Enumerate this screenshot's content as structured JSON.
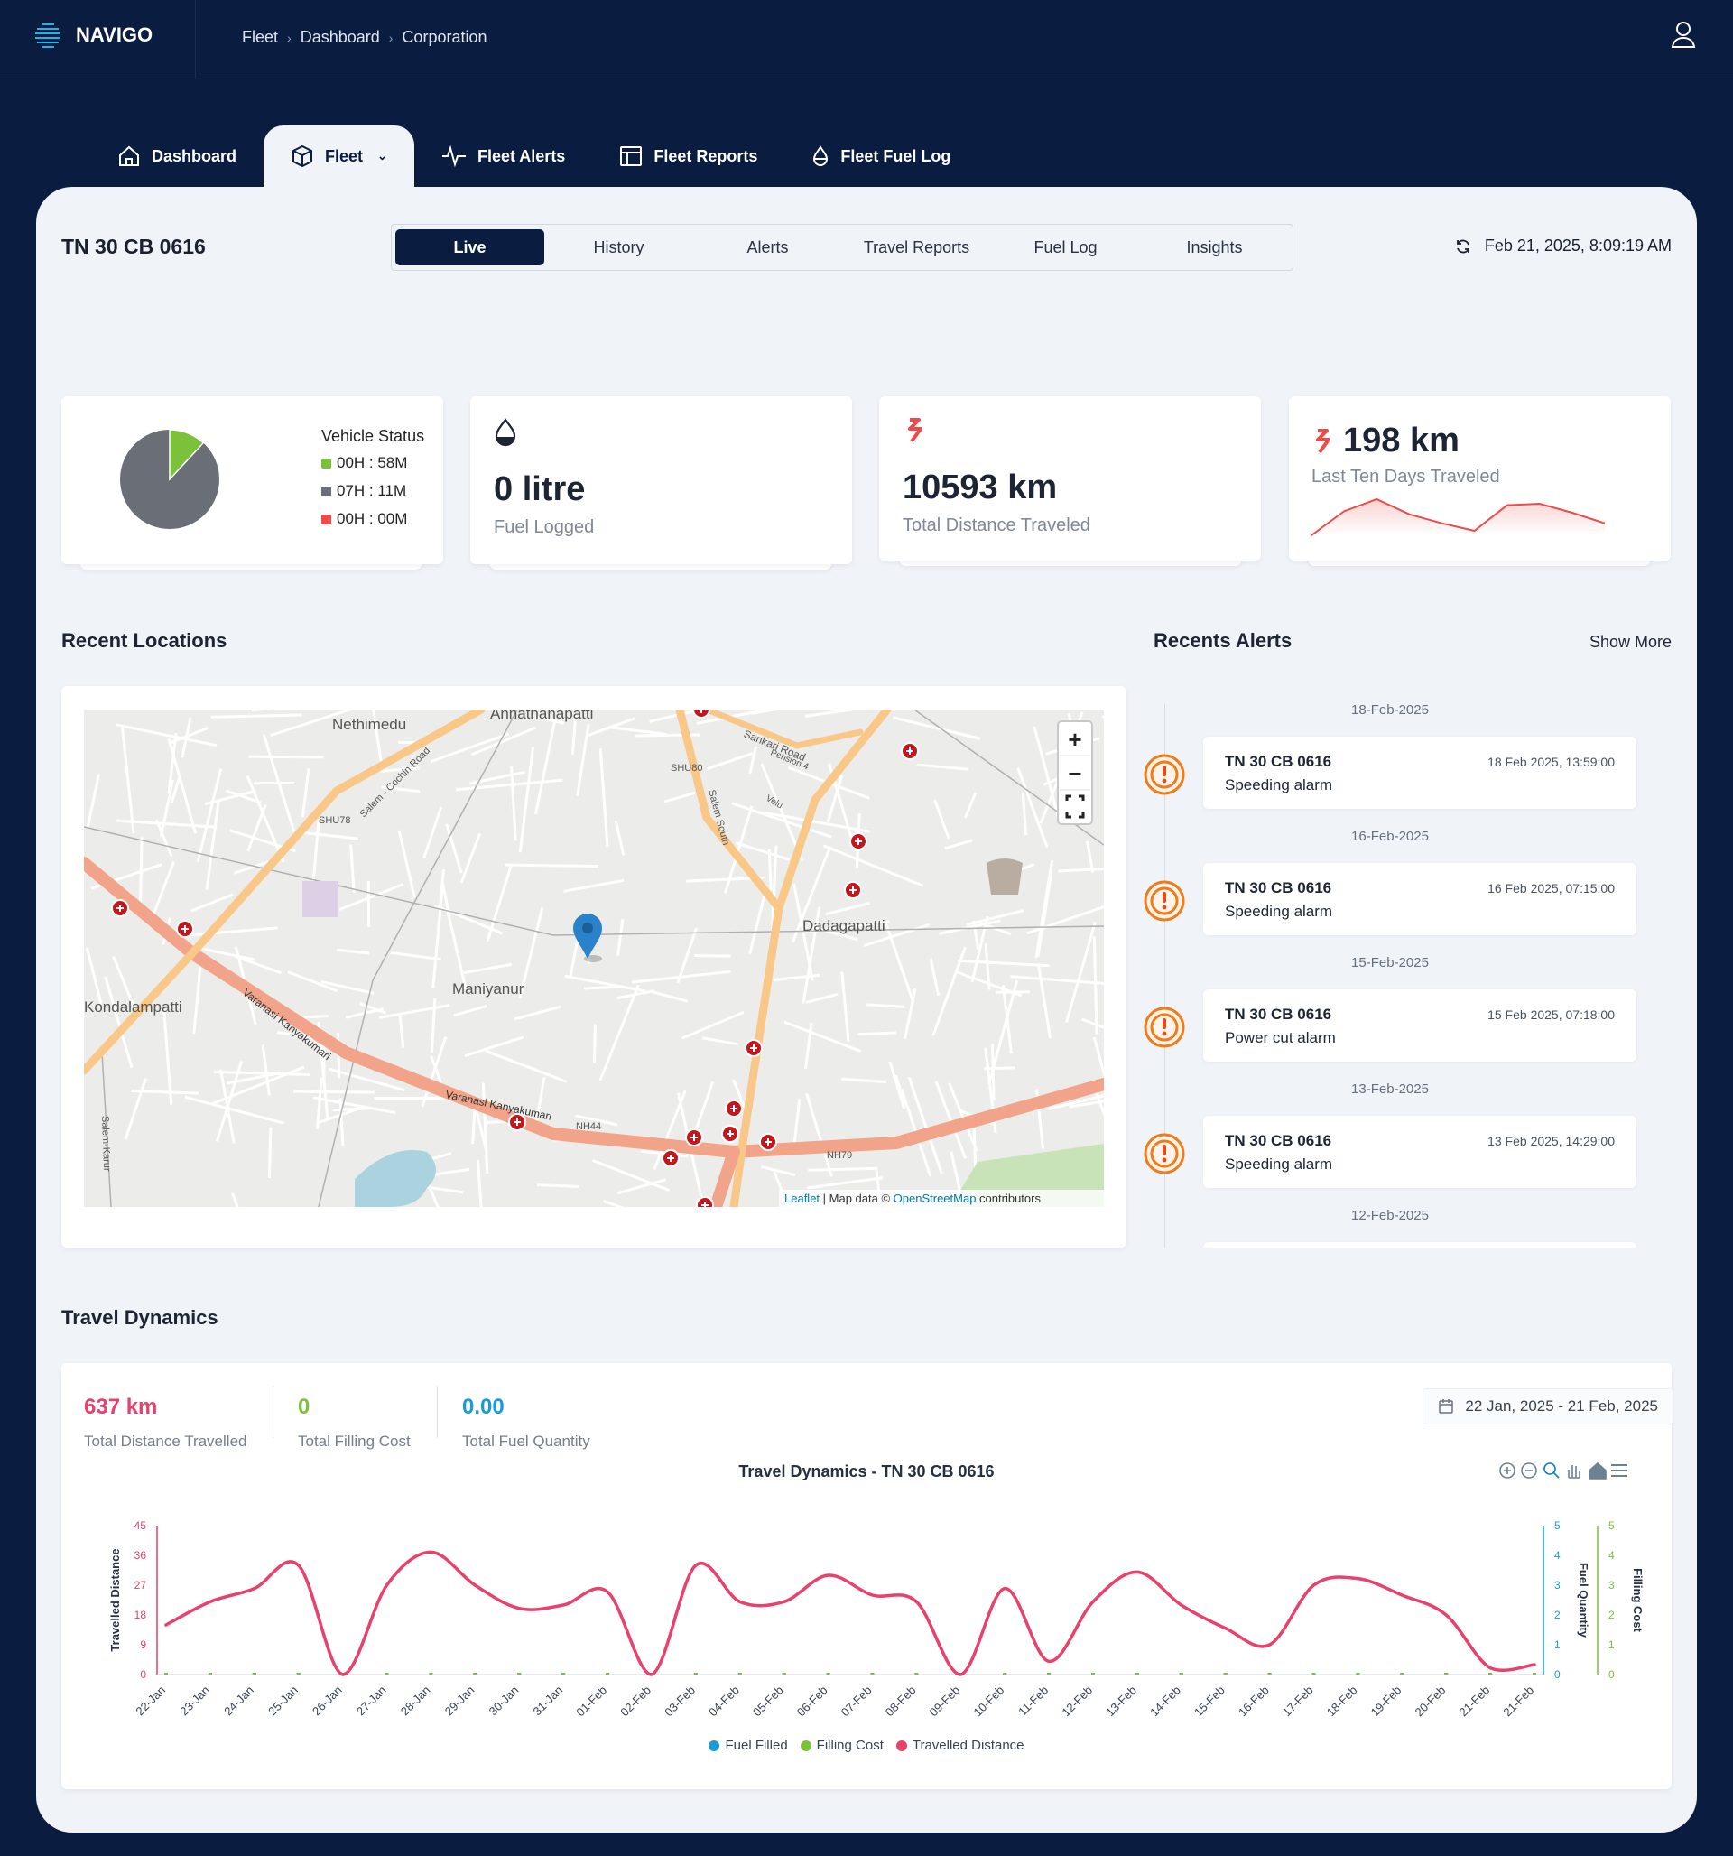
{
  "app": {
    "name": "NAVIGO"
  },
  "breadcrumb": [
    "Fleet",
    "Dashboard",
    "Corporation"
  ],
  "nav": [
    {
      "label": "Dashboard",
      "icon": "home-icon"
    },
    {
      "label": "Fleet",
      "icon": "box-icon",
      "active": true
    },
    {
      "label": "Fleet Alerts",
      "icon": "activity-icon"
    },
    {
      "label": "Fleet Reports",
      "icon": "table-icon"
    },
    {
      "label": "Fleet Fuel Log",
      "icon": "droplet-icon"
    }
  ],
  "vehicle": {
    "title": "TN 30 CB 0616"
  },
  "subtabs": [
    "Live",
    "History",
    "Alerts",
    "Travel Reports",
    "Fuel Log",
    "Insights"
  ],
  "timestamp": "Feb 21, 2025, 8:09:19 AM",
  "status_card": {
    "title": "Vehicle Status",
    "items": [
      {
        "label": "00H : 58M",
        "color": "#7cc13a"
      },
      {
        "label": "07H : 11M",
        "color": "#6a6f77"
      },
      {
        "label": "00H : 00M",
        "color": "#ef4a4a"
      }
    ]
  },
  "fuel_card": {
    "value": "0 litre",
    "label": "Fuel Logged"
  },
  "distance_card": {
    "value": "10593 km",
    "label": "Total Distance Traveled"
  },
  "ten_days_card": {
    "value": "198 km",
    "label": "Last Ten Days Traveled"
  },
  "recent_locations": {
    "title": "Recent Locations",
    "places": [
      "Nethimedu",
      "Annathanapatti",
      "Sankari Road",
      "Pension 4",
      "SHU80",
      "SHU78",
      "Salem - Cochin Road",
      "Salem South",
      "Velu",
      "Dadagapatti",
      "Maniyanur",
      "Kondalampatti",
      "Varanasi Kanyakumari",
      "Varanasi Kanyakumari",
      "NH44",
      "NH79",
      "Salem-Karur"
    ],
    "controls": {
      "zoom_in": "+",
      "zoom_out": "−"
    },
    "attribution": {
      "leaflet": "Leaflet",
      "text": " | Map data © ",
      "osm": "OpenStreetMap",
      "suffix": " contributors"
    }
  },
  "recent_alerts": {
    "title": "Recents Alerts",
    "show_more": "Show More",
    "groups": [
      {
        "date": "18-Feb-2025",
        "vehicle": "TN 30 CB 0616",
        "type": "Speeding alarm",
        "time": "18 Feb 2025, 13:59:00"
      },
      {
        "date": "16-Feb-2025",
        "vehicle": "TN 30 CB 0616",
        "type": "Speeding alarm",
        "time": "16 Feb 2025, 07:15:00"
      },
      {
        "date": "15-Feb-2025",
        "vehicle": "TN 30 CB 0616",
        "type": "Power cut alarm",
        "time": "15 Feb 2025, 07:18:00"
      },
      {
        "date": "13-Feb-2025",
        "vehicle": "TN 30 CB 0616",
        "type": "Speeding alarm",
        "time": "13 Feb 2025, 14:29:00"
      },
      {
        "date": "12-Feb-2025",
        "vehicle": "",
        "type": "",
        "time": ""
      }
    ]
  },
  "travel_dynamics": {
    "title": "Travel Dynamics",
    "stats": [
      {
        "value": "637 km",
        "label": "Total Distance Travelled",
        "color": "#e8416b"
      },
      {
        "value": "0",
        "label": "Total Filling Cost",
        "color": "#7cc13a"
      },
      {
        "value": "0.00",
        "label": "Total Fuel Quantity",
        "color": "#1a9bd7"
      }
    ],
    "date_range": "22 Jan, 2025 - 21 Feb, 2025"
  },
  "chart_data": {
    "type": "line",
    "title": "Travel Dynamics - TN 30 CB 0616",
    "categories": [
      "22-Jan",
      "23-Jan",
      "24-Jan",
      "25-Jan",
      "26-Jan",
      "27-Jan",
      "28-Jan",
      "29-Jan",
      "30-Jan",
      "31-Jan",
      "01-Feb",
      "02-Feb",
      "03-Feb",
      "04-Feb",
      "05-Feb",
      "06-Feb",
      "07-Feb",
      "08-Feb",
      "09-Feb",
      "10-Feb",
      "11-Feb",
      "12-Feb",
      "13-Feb",
      "14-Feb",
      "15-Feb",
      "16-Feb",
      "17-Feb",
      "18-Feb",
      "19-Feb",
      "20-Feb",
      "21-Feb",
      "21-Feb"
    ],
    "series": [
      {
        "name": "Fuel Filled",
        "axis": "Fuel Quantity",
        "color": "#1a9bd7",
        "values": [
          0,
          0,
          0,
          0,
          0,
          0,
          0,
          0,
          0,
          0,
          0,
          0,
          0,
          0,
          0,
          0,
          0,
          0,
          0,
          0,
          0,
          0,
          0,
          0,
          0,
          0,
          0,
          0,
          0,
          0,
          0,
          0
        ]
      },
      {
        "name": "Filling Cost",
        "axis": "Filling Cost",
        "color": "#7cc13a",
        "values": [
          0,
          0,
          0,
          0,
          0,
          0,
          0,
          0,
          0,
          0,
          0,
          0,
          0,
          0,
          0,
          0,
          0,
          0,
          0,
          0,
          0,
          0,
          0,
          0,
          0,
          0,
          0,
          0,
          0,
          0,
          0,
          0
        ]
      },
      {
        "name": "Travelled Distance",
        "axis": "Travelled Distance",
        "color": "#e8416b",
        "values": [
          15,
          22,
          26,
          33,
          0,
          27,
          37,
          27,
          20,
          21,
          25,
          0,
          33,
          22,
          22,
          30,
          24,
          22,
          0,
          26,
          4,
          22,
          31,
          21,
          14,
          9,
          27,
          29,
          24,
          18,
          2,
          3
        ]
      }
    ],
    "axes": {
      "left": {
        "label": "Travelled Distance",
        "ylim": [
          0,
          45
        ],
        "ticks": [
          "0",
          "9",
          "18",
          "27",
          "36",
          "45"
        ],
        "color": "#e8416b"
      },
      "right1": {
        "label": "Fuel Quantity",
        "ylim": [
          0,
          5
        ],
        "ticks": [
          "0",
          "1",
          "2",
          "3",
          "4",
          "5"
        ],
        "color": "#1a9bd7"
      },
      "right2": {
        "label": "Filling Cost",
        "ylim": [
          0,
          5
        ],
        "ticks": [
          "0",
          "1",
          "2",
          "3",
          "4",
          "5"
        ],
        "color": "#7cc13a"
      }
    },
    "sparkline": {
      "label": "Last Ten Days Traveled",
      "values": [
        0,
        16,
        24,
        14,
        8,
        3,
        20,
        21,
        15,
        8
      ]
    }
  }
}
